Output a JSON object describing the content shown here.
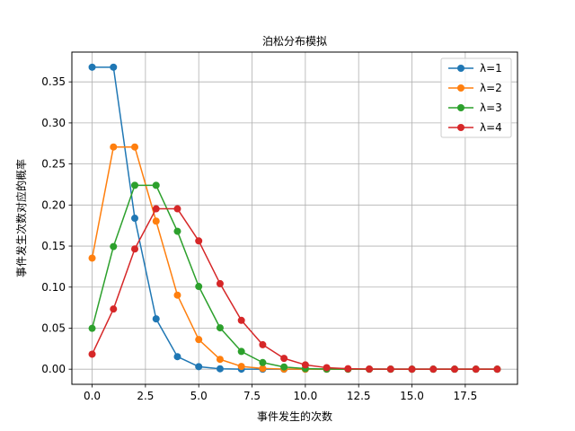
{
  "chart_data": {
    "type": "line",
    "title": "泊松分布模拟",
    "xlabel": "事件发生的次数",
    "ylabel": "事件发生次数对应的概率",
    "xlim": [
      -0.95,
      19.95
    ],
    "ylim": [
      -0.0184,
      0.3863
    ],
    "x_ticks": [
      0,
      2.5,
      5,
      7.5,
      10,
      12.5,
      15,
      17.5
    ],
    "x_tick_labels": [
      "0.0",
      "2.5",
      "5.0",
      "7.5",
      "10.0",
      "12.5",
      "15.0",
      "17.5"
    ],
    "y_ticks": [
      0,
      0.05,
      0.1,
      0.15,
      0.2,
      0.25,
      0.3,
      0.35
    ],
    "y_tick_labels": [
      "0.00",
      "0.05",
      "0.10",
      "0.15",
      "0.20",
      "0.25",
      "0.30",
      "0.35"
    ],
    "grid": true,
    "legend_position": "top-right",
    "x": [
      0,
      1,
      2,
      3,
      4,
      5,
      6,
      7,
      8,
      9,
      10,
      11,
      12,
      13,
      14,
      15,
      16,
      17,
      18,
      19
    ],
    "series": [
      {
        "name": "λ=1",
        "color": "#1f77b4",
        "values": [
          0.3679,
          0.3679,
          0.1839,
          0.0613,
          0.0153,
          0.0031,
          0.0005,
          0.0001,
          0.0,
          0.0,
          0.0,
          0.0,
          0.0,
          0.0,
          0.0,
          0.0,
          0.0,
          0.0,
          0.0,
          0.0
        ]
      },
      {
        "name": "λ=2",
        "color": "#ff7f0e",
        "values": [
          0.1353,
          0.2707,
          0.2707,
          0.1804,
          0.0902,
          0.0361,
          0.012,
          0.0034,
          0.0009,
          0.0002,
          0.0,
          0.0,
          0.0,
          0.0,
          0.0,
          0.0,
          0.0,
          0.0,
          0.0,
          0.0
        ]
      },
      {
        "name": "λ=3",
        "color": "#2ca02c",
        "values": [
          0.0498,
          0.1494,
          0.224,
          0.224,
          0.168,
          0.1008,
          0.0504,
          0.0216,
          0.0081,
          0.0027,
          0.0008,
          0.0002,
          0.0001,
          0.0,
          0.0,
          0.0,
          0.0,
          0.0,
          0.0,
          0.0
        ]
      },
      {
        "name": "λ=4",
        "color": "#d62728",
        "values": [
          0.0183,
          0.0733,
          0.1465,
          0.1954,
          0.1954,
          0.1563,
          0.1042,
          0.0595,
          0.0298,
          0.0132,
          0.0053,
          0.0019,
          0.0006,
          0.0002,
          0.0001,
          0.0,
          0.0,
          0.0,
          0.0,
          0.0
        ]
      }
    ]
  }
}
